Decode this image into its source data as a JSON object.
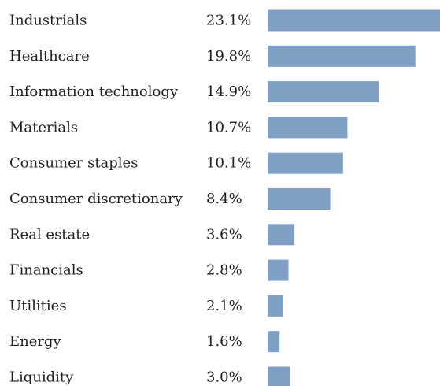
{
  "chart_data": {
    "type": "bar",
    "orientation": "horizontal",
    "bar_color": "#7f9fc4",
    "categories": [
      "Industrials",
      "Healthcare",
      "Information technology",
      "Materials",
      "Consumer staples",
      "Consumer discretionary",
      "Real estate",
      "Financials",
      "Utilities",
      "Energy",
      "Liquidity"
    ],
    "values": [
      23.1,
      19.8,
      14.9,
      10.7,
      10.1,
      8.4,
      3.6,
      2.8,
      2.1,
      1.6,
      3.0
    ],
    "value_labels": [
      "23.1%",
      "19.8%",
      "14.9%",
      "10.7%",
      "10.1%",
      "8.4%",
      "3.6%",
      "2.8%",
      "2.1%",
      "1.6%",
      "3.0%"
    ],
    "xlim": [
      0,
      23.1
    ],
    "grid": false,
    "title": "",
    "xlabel": "",
    "ylabel": ""
  }
}
